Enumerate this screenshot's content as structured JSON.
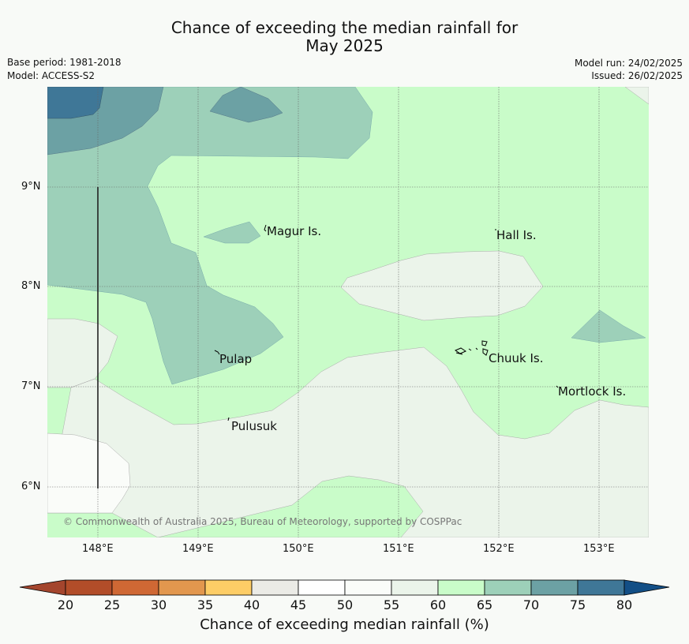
{
  "title_line1": "Chance of exceeding the median rainfall for",
  "title_line2": "May 2025",
  "meta_left": [
    "Base period: 1981-2018",
    "Model: ACCESS-S2"
  ],
  "meta_right": [
    "Model run: 24/02/2025",
    "Issued: 26/02/2025"
  ],
  "lon_ticks": [
    "148°E",
    "149°E",
    "150°E",
    "151°E",
    "152°E",
    "153°E"
  ],
  "lat_ticks": [
    "9°N",
    "8°N",
    "7°N",
    "6°N"
  ],
  "places": [
    "Magur Is.",
    "Hall Is.",
    "Pulap",
    "Chuuk Is.",
    "Mortlock Is.",
    "Pulusuk"
  ],
  "credit": "© Commonwealth of Australia 2025, Bureau of Meteorology, supported by COSPPac",
  "colorbar": {
    "title": "Chance of exceeding median rainfall (%)",
    "ticks": [
      "20",
      "25",
      "30",
      "35",
      "40",
      "45",
      "50",
      "55",
      "60",
      "65",
      "70",
      "75",
      "80"
    ],
    "colors": {
      "below_20": "#a4452d",
      "20_25": "#b24d29",
      "25_30": "#cf6834",
      "30_35": "#e2974e",
      "35_40": "#fdcd66",
      "40_45": "#ebebe6",
      "45_50": "#ffffff",
      "50_55": "#fafcf9",
      "55_60": "#ebf4ea",
      "60_65": "#c9fcc9",
      "65_70": "#9dd0b9",
      "70_75": "#6ca1a4",
      "75_80": "#3f7797",
      "above_80": "#134f86"
    }
  }
}
